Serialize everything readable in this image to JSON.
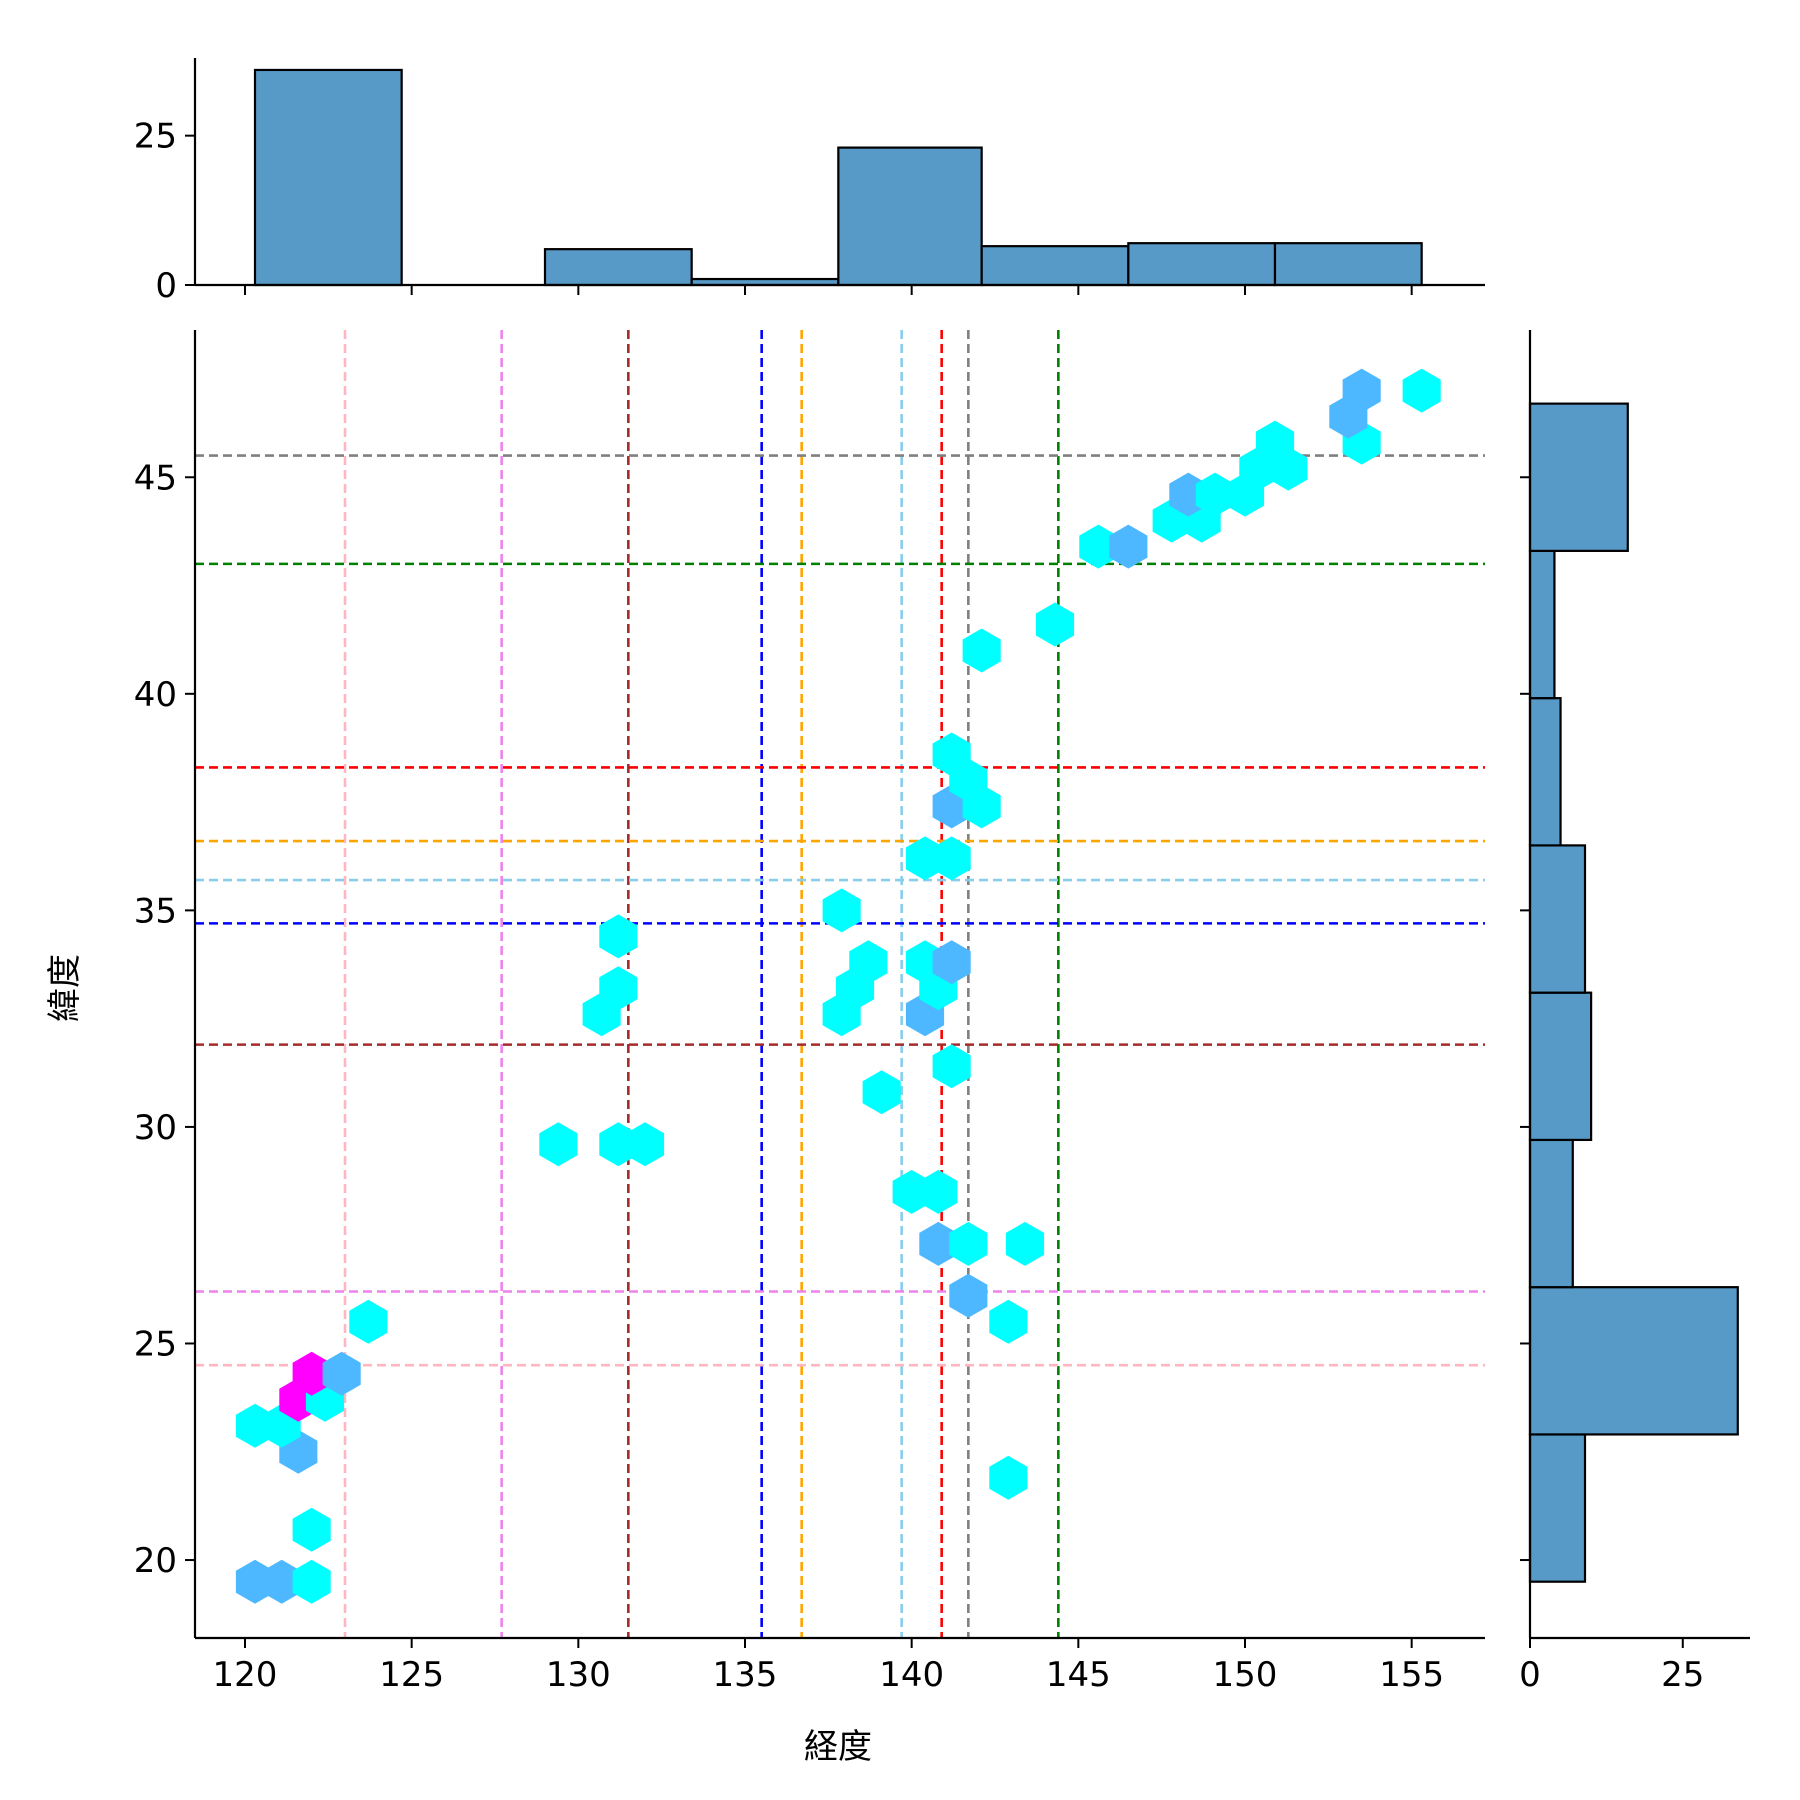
{
  "chart_data": {
    "type": "hexbin-joint",
    "xlabel": "経度",
    "ylabel": "緯度",
    "xlim": [
      118.5,
      157.2
    ],
    "ylim": [
      18.2,
      48.4
    ],
    "x_ticks": [
      120,
      125,
      130,
      135,
      140,
      145,
      150,
      155
    ],
    "y_ticks": [
      20,
      25,
      30,
      35,
      40,
      45
    ],
    "grid": false,
    "bin_colors": {
      "1": "#00ffff",
      "2": "#4db8ff",
      "3": "#ff00ff"
    },
    "hexbins": [
      {
        "x": 120.3,
        "y": 19.5,
        "count": 2
      },
      {
        "x": 121.1,
        "y": 19.5,
        "count": 2
      },
      {
        "x": 122.0,
        "y": 19.5,
        "count": 1
      },
      {
        "x": 122.0,
        "y": 20.7,
        "count": 1
      },
      {
        "x": 142.9,
        "y": 21.9,
        "count": 1
      },
      {
        "x": 121.6,
        "y": 22.5,
        "count": 2
      },
      {
        "x": 120.3,
        "y": 23.1,
        "count": 1
      },
      {
        "x": 121.1,
        "y": 23.1,
        "count": 1
      },
      {
        "x": 121.6,
        "y": 23.7,
        "count": 3
      },
      {
        "x": 122.4,
        "y": 23.7,
        "count": 1
      },
      {
        "x": 122.0,
        "y": 24.3,
        "count": 3
      },
      {
        "x": 122.9,
        "y": 24.3,
        "count": 2
      },
      {
        "x": 123.7,
        "y": 25.5,
        "count": 1
      },
      {
        "x": 142.9,
        "y": 25.5,
        "count": 1
      },
      {
        "x": 141.7,
        "y": 26.1,
        "count": 2
      },
      {
        "x": 140.8,
        "y": 27.3,
        "count": 2
      },
      {
        "x": 141.7,
        "y": 27.3,
        "count": 1
      },
      {
        "x": 143.4,
        "y": 27.3,
        "count": 1
      },
      {
        "x": 140.0,
        "y": 28.5,
        "count": 1
      },
      {
        "x": 140.8,
        "y": 28.5,
        "count": 1
      },
      {
        "x": 129.4,
        "y": 29.6,
        "count": 1
      },
      {
        "x": 131.2,
        "y": 29.6,
        "count": 1
      },
      {
        "x": 132.0,
        "y": 29.6,
        "count": 1
      },
      {
        "x": 139.1,
        "y": 30.8,
        "count": 1
      },
      {
        "x": 141.2,
        "y": 31.4,
        "count": 1
      },
      {
        "x": 130.7,
        "y": 32.6,
        "count": 1
      },
      {
        "x": 137.9,
        "y": 32.6,
        "count": 1
      },
      {
        "x": 140.4,
        "y": 32.6,
        "count": 2
      },
      {
        "x": 131.2,
        "y": 33.2,
        "count": 1
      },
      {
        "x": 138.3,
        "y": 33.2,
        "count": 1
      },
      {
        "x": 140.8,
        "y": 33.2,
        "count": 1
      },
      {
        "x": 138.7,
        "y": 33.8,
        "count": 1
      },
      {
        "x": 140.4,
        "y": 33.8,
        "count": 1
      },
      {
        "x": 141.2,
        "y": 33.8,
        "count": 2
      },
      {
        "x": 131.2,
        "y": 34.4,
        "count": 1
      },
      {
        "x": 137.9,
        "y": 35.0,
        "count": 1
      },
      {
        "x": 140.4,
        "y": 36.2,
        "count": 1
      },
      {
        "x": 141.2,
        "y": 36.2,
        "count": 1
      },
      {
        "x": 141.2,
        "y": 37.4,
        "count": 2
      },
      {
        "x": 142.1,
        "y": 37.4,
        "count": 1
      },
      {
        "x": 141.7,
        "y": 38.0,
        "count": 1
      },
      {
        "x": 141.2,
        "y": 38.6,
        "count": 1
      },
      {
        "x": 142.1,
        "y": 41.0,
        "count": 1
      },
      {
        "x": 144.3,
        "y": 41.6,
        "count": 1
      },
      {
        "x": 145.6,
        "y": 43.4,
        "count": 1
      },
      {
        "x": 146.5,
        "y": 43.4,
        "count": 2
      },
      {
        "x": 147.8,
        "y": 44.0,
        "count": 1
      },
      {
        "x": 148.7,
        "y": 44.0,
        "count": 1
      },
      {
        "x": 148.3,
        "y": 44.6,
        "count": 2
      },
      {
        "x": 149.1,
        "y": 44.6,
        "count": 1
      },
      {
        "x": 150.0,
        "y": 44.6,
        "count": 1
      },
      {
        "x": 150.4,
        "y": 45.2,
        "count": 1
      },
      {
        "x": 151.3,
        "y": 45.2,
        "count": 1
      },
      {
        "x": 150.9,
        "y": 45.8,
        "count": 1
      },
      {
        "x": 153.5,
        "y": 45.8,
        "count": 1
      },
      {
        "x": 153.1,
        "y": 46.4,
        "count": 2
      },
      {
        "x": 153.5,
        "y": 47.0,
        "count": 2
      },
      {
        "x": 155.3,
        "y": 47.0,
        "count": 1
      }
    ],
    "vlines": [
      {
        "x": 123.0,
        "color": "#ffb6c1"
      },
      {
        "x": 127.7,
        "color": "#ee82ee"
      },
      {
        "x": 131.5,
        "color": "#a52a2a"
      },
      {
        "x": 135.5,
        "color": "#0000ff"
      },
      {
        "x": 136.7,
        "color": "#ffa500"
      },
      {
        "x": 139.7,
        "color": "#87ceeb"
      },
      {
        "x": 140.9,
        "color": "#ff0000"
      },
      {
        "x": 141.7,
        "color": "#808080"
      },
      {
        "x": 144.4,
        "color": "#008000"
      }
    ],
    "hlines": [
      {
        "y": 24.5,
        "color": "#ffb6c1"
      },
      {
        "y": 26.2,
        "color": "#ee82ee"
      },
      {
        "y": 31.9,
        "color": "#a52a2a"
      },
      {
        "y": 34.7,
        "color": "#0000ff"
      },
      {
        "y": 35.7,
        "color": "#87ceeb"
      },
      {
        "y": 36.6,
        "color": "#ffa500"
      },
      {
        "y": 38.3,
        "color": "#ff0000"
      },
      {
        "y": 43.0,
        "color": "#008000"
      },
      {
        "y": 45.5,
        "color": "#808080"
      }
    ],
    "x_marginal": {
      "type": "histogram",
      "ticks": [
        0,
        25
      ],
      "ylim": [
        0,
        38
      ],
      "bins": [
        {
          "x0": 120.3,
          "x1": 124.7,
          "count": 36
        },
        {
          "x0": 124.7,
          "x1": 129.0,
          "count": 0
        },
        {
          "x0": 129.0,
          "x1": 133.4,
          "count": 6
        },
        {
          "x0": 133.4,
          "x1": 137.8,
          "count": 1
        },
        {
          "x0": 137.8,
          "x1": 142.1,
          "count": 23
        },
        {
          "x0": 142.1,
          "x1": 146.5,
          "count": 6.5
        },
        {
          "x0": 146.5,
          "x1": 150.9,
          "count": 7
        },
        {
          "x0": 150.9,
          "x1": 155.3,
          "count": 7
        }
      ]
    },
    "y_marginal": {
      "type": "histogram",
      "ticks": [
        0,
        25
      ],
      "xlim": [
        0,
        36
      ],
      "bins": [
        {
          "y0": 19.5,
          "y1": 22.9,
          "count": 9
        },
        {
          "y0": 22.9,
          "y1": 26.3,
          "count": 34
        },
        {
          "y0": 26.3,
          "y1": 29.7,
          "count": 7
        },
        {
          "y0": 29.7,
          "y1": 33.1,
          "count": 10
        },
        {
          "y0": 33.1,
          "y1": 36.5,
          "count": 9
        },
        {
          "y0": 36.5,
          "y1": 39.9,
          "count": 5
        },
        {
          "y0": 39.9,
          "y1": 43.3,
          "count": 4
        },
        {
          "y0": 43.3,
          "y1": 46.7,
          "count": 16
        }
      ]
    }
  }
}
